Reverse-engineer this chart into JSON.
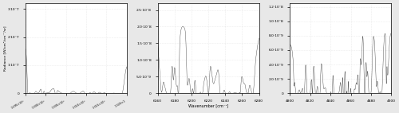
{
  "panel1": {
    "xmin": 12950,
    "xmax": 13200,
    "ymin": 0,
    "ymax": 3.2e-07,
    "yticks": [
      0,
      1e-07,
      2e-07,
      3e-07
    ],
    "xticks": [
      12950,
      13000,
      13050,
      13100,
      13150,
      13200
    ],
    "xtick_labels": [
      "1.295×10⁴",
      "1.300×10⁴",
      "1.305×10⁴",
      "1.310×10⁴",
      "1.315×10⁴",
      "1.320×1"
    ],
    "ylabel": "Radiance [W/cm²/cm⁻¹/sr]"
  },
  "panel2": {
    "xmin": 6160,
    "xmax": 6280,
    "ymin": 0,
    "ymax": 2.7e-08,
    "yticks": [
      0,
      5e-09,
      1e-08,
      1.5e-08,
      2e-08,
      2.5e-08
    ],
    "xticks": [
      6160,
      6180,
      6200,
      6220,
      6240,
      6260,
      6280
    ],
    "xlabel": "Wavenumber [cm⁻¹]"
  },
  "panel3": {
    "xmin": 4800,
    "xmax": 4900,
    "ymin": 0,
    "ymax": 1.25e-08,
    "yticks": [
      0,
      2e-09,
      4e-09,
      6e-09,
      8e-09,
      1e-08,
      1.2e-08
    ],
    "xticks": [
      4800,
      4820,
      4840,
      4860,
      4880,
      4900
    ]
  },
  "line_color": "#404040",
  "bg_color": "#ffffff",
  "grid_color": "#cccccc",
  "figure_bg": "#e8e8e8"
}
